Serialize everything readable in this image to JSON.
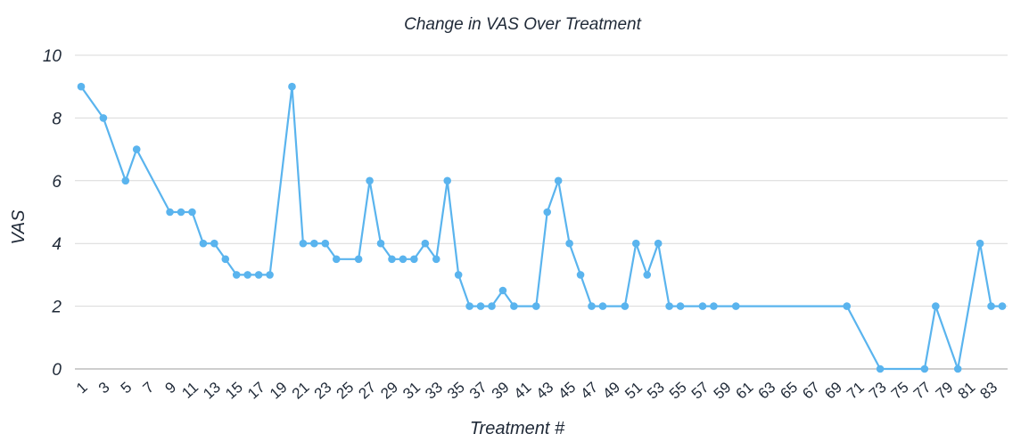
{
  "chart_data": {
    "type": "line",
    "title": "Change in VAS Over Treatment",
    "xlabel": "Treatment #",
    "ylabel": "VAS",
    "ylim": [
      0,
      10
    ],
    "yticks": [
      0,
      2,
      4,
      6,
      8,
      10
    ],
    "xlim": [
      1,
      84
    ],
    "xticks": [
      1,
      3,
      5,
      7,
      9,
      11,
      13,
      15,
      17,
      19,
      21,
      23,
      25,
      27,
      29,
      31,
      33,
      35,
      37,
      39,
      41,
      43,
      45,
      47,
      49,
      51,
      53,
      55,
      57,
      59,
      61,
      63,
      65,
      67,
      69,
      71,
      73,
      75,
      77,
      79,
      81,
      83
    ],
    "grid": true,
    "legend": "none",
    "color": "#5ab4ee",
    "series": [
      {
        "points": [
          [
            1,
            9
          ],
          [
            3,
            8
          ],
          [
            5,
            6
          ],
          [
            6,
            7
          ],
          [
            9,
            5
          ],
          [
            10,
            5
          ],
          [
            11,
            5
          ],
          [
            12,
            4
          ],
          [
            13,
            4
          ],
          [
            14,
            3.5
          ],
          [
            15,
            3
          ],
          [
            16,
            3
          ],
          [
            17,
            3
          ],
          [
            18,
            3
          ],
          [
            20,
            9
          ],
          [
            21,
            4
          ],
          [
            22,
            4
          ],
          [
            23,
            4
          ],
          [
            24,
            3.5
          ],
          [
            26,
            3.5
          ],
          [
            27,
            6
          ],
          [
            28,
            4
          ],
          [
            29,
            3.5
          ],
          [
            30,
            3.5
          ],
          [
            31,
            3.5
          ],
          [
            32,
            4
          ],
          [
            33,
            3.5
          ],
          [
            34,
            6
          ],
          [
            35,
            3
          ],
          [
            36,
            2
          ],
          [
            37,
            2
          ],
          [
            38,
            2
          ],
          [
            39,
            2.5
          ],
          [
            40,
            2
          ],
          [
            42,
            2
          ],
          [
            43,
            5
          ],
          [
            44,
            6
          ],
          [
            45,
            4
          ],
          [
            46,
            3
          ],
          [
            47,
            2
          ],
          [
            48,
            2
          ],
          [
            50,
            2
          ],
          [
            51,
            4
          ],
          [
            52,
            3
          ],
          [
            53,
            4
          ],
          [
            54,
            2
          ],
          [
            55,
            2
          ],
          [
            57,
            2
          ],
          [
            58,
            2
          ],
          [
            60,
            2
          ],
          [
            70,
            2
          ],
          [
            73,
            0
          ],
          [
            77,
            0
          ],
          [
            78,
            2
          ],
          [
            80,
            0
          ],
          [
            82,
            4
          ],
          [
            83,
            2
          ],
          [
            84,
            2
          ]
        ]
      }
    ]
  }
}
